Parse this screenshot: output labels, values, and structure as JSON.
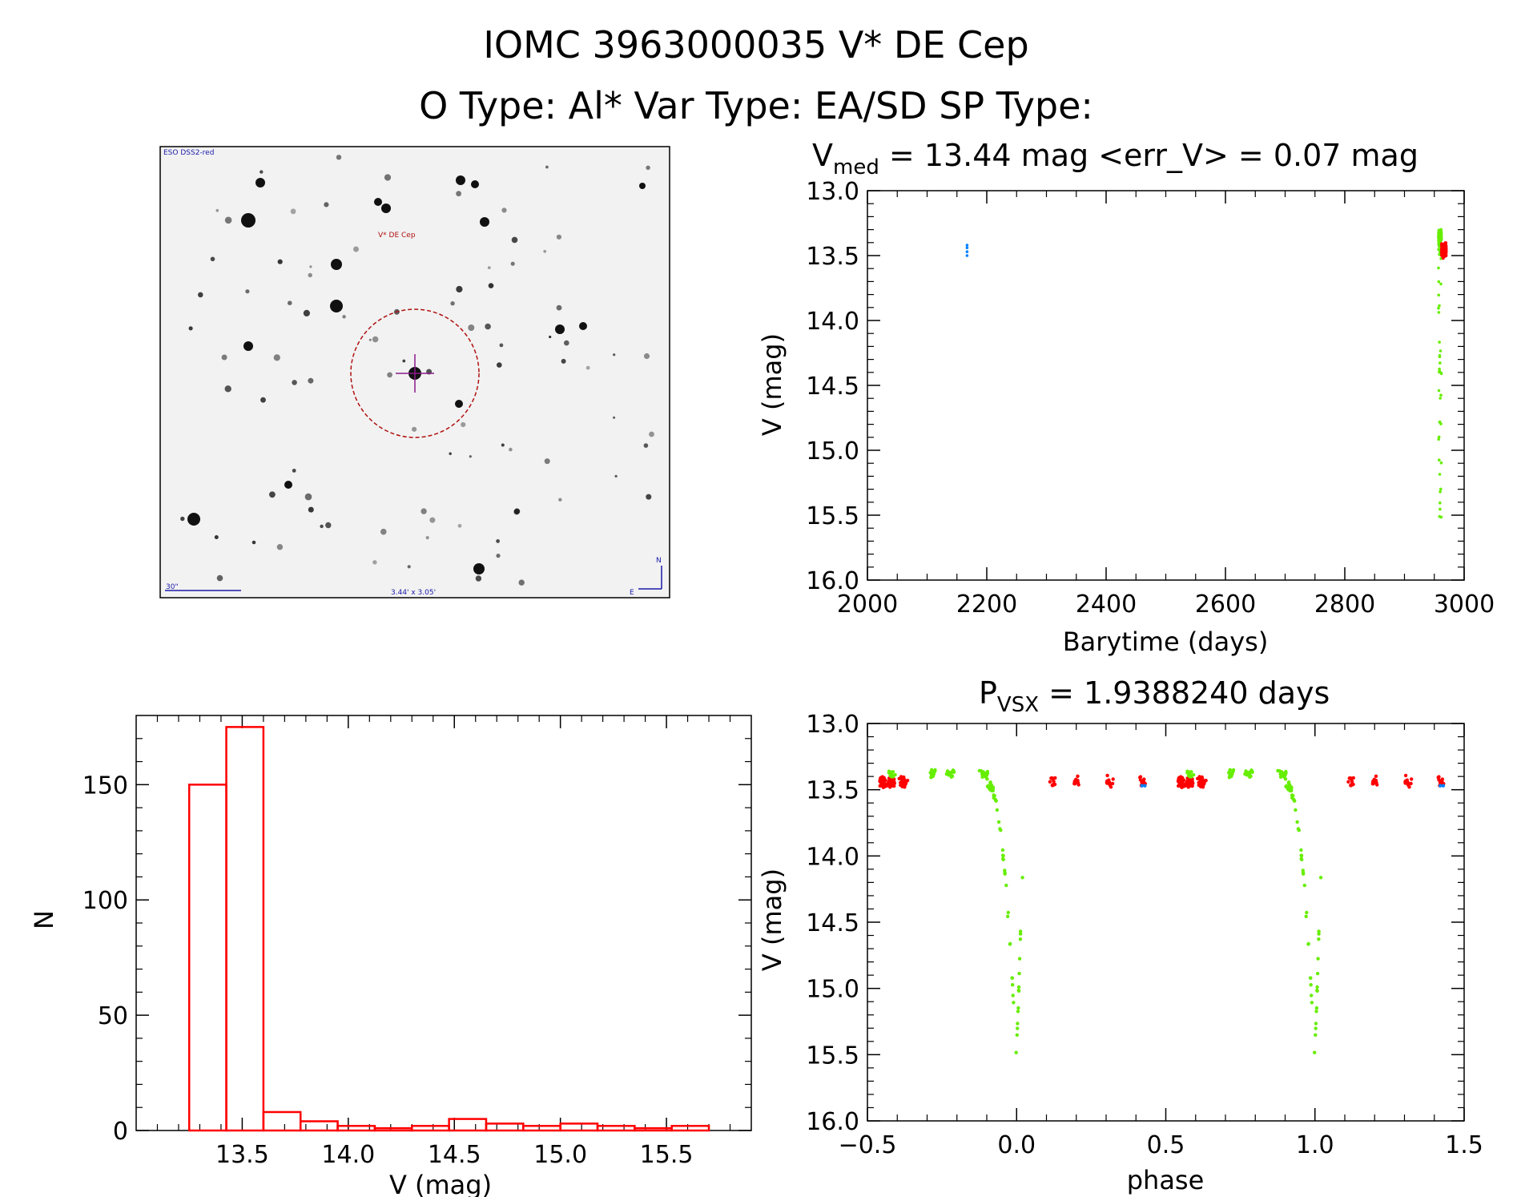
{
  "header": {
    "line1": "IOMC 3963000035    V* DE Cep",
    "line2": "O Type: Al*  Var Type: EA/SD  SP Type:"
  },
  "finder": {
    "top_left_label": "ESO DSS2-red",
    "target_label": "V* DE Cep",
    "scale_label": "30\"",
    "fov_label": "3.44' x 3.05'",
    "compass_n": "N",
    "compass_e": "E",
    "colors": {
      "background": "#f2f2f2",
      "star": "#111111",
      "circle": "#b01010",
      "crosshair": "#8a1a8a",
      "annotation": "#1a1aaa"
    }
  },
  "chart_data": [
    {
      "id": "lightcurve",
      "type": "scatter",
      "title_main": "V",
      "title_sub": "med",
      "title_rest": " = 13.44 mag <err_V> = 0.07 mag",
      "xlabel": "Barytime (days)",
      "ylabel": "V (mag)",
      "xlim": [
        2000,
        3000
      ],
      "ylim": [
        16.0,
        13.0
      ],
      "y_inverted": true,
      "xticks": [
        2000,
        2200,
        2400,
        2600,
        2800,
        3000
      ],
      "yticks": [
        13.0,
        13.5,
        14.0,
        14.5,
        15.0,
        15.5,
        16.0
      ],
      "series": [
        {
          "color": "#0080ff",
          "points": [
            [
              2167,
              13.42
            ],
            [
              2167,
              13.44
            ],
            [
              2167,
              13.47
            ],
            [
              2167,
              13.5
            ]
          ]
        },
        {
          "color": "#66ee00",
          "x_range": [
            2957,
            2962
          ],
          "y_range": [
            13.28,
            15.6
          ],
          "count": 160
        },
        {
          "color": "#ff0000",
          "x_range": [
            2962,
            2970
          ],
          "y_range": [
            13.35,
            13.68
          ],
          "count": 240
        }
      ]
    },
    {
      "id": "histogram",
      "type": "bar",
      "xlabel": "V (mag)",
      "ylabel": "N",
      "xlim": [
        13.0,
        15.9
      ],
      "ylim": [
        0,
        180
      ],
      "xticks": [
        13.5,
        14.0,
        14.5,
        15.0,
        15.5
      ],
      "yticks": [
        0,
        50,
        100,
        150
      ],
      "bin_width": 0.175,
      "bins": [
        {
          "x0": 13.25,
          "count": 150
        },
        {
          "x0": 13.425,
          "count": 175
        },
        {
          "x0": 13.6,
          "count": 8
        },
        {
          "x0": 13.775,
          "count": 4
        },
        {
          "x0": 13.95,
          "count": 2
        },
        {
          "x0": 14.125,
          "count": 1
        },
        {
          "x0": 14.3,
          "count": 2
        },
        {
          "x0": 14.475,
          "count": 5
        },
        {
          "x0": 14.65,
          "count": 3
        },
        {
          "x0": 14.825,
          "count": 2
        },
        {
          "x0": 15.0,
          "count": 3
        },
        {
          "x0": 15.175,
          "count": 2
        },
        {
          "x0": 15.35,
          "count": 1
        },
        {
          "x0": 15.525,
          "count": 2
        }
      ],
      "color": "#ff0000"
    },
    {
      "id": "phased",
      "type": "scatter",
      "title_main": "P",
      "title_sub": "VSX",
      "title_rest": " = 1.9388240 days",
      "xlabel": "phase",
      "ylabel": "V (mag)",
      "xlim": [
        -0.5,
        1.5
      ],
      "ylim": [
        16.0,
        13.0
      ],
      "y_inverted": true,
      "xticks": [
        -0.5,
        0.0,
        0.5,
        1.0,
        1.5
      ],
      "yticks": [
        13.0,
        13.5,
        14.0,
        14.5,
        15.0,
        15.5,
        16.0
      ],
      "period_days": 1.938824,
      "eclipse_min_mag": 15.6,
      "baseline_mag": 13.42,
      "colors": {
        "asas": "#0080ff",
        "green": "#66ee00",
        "red": "#ff0000"
      }
    }
  ]
}
